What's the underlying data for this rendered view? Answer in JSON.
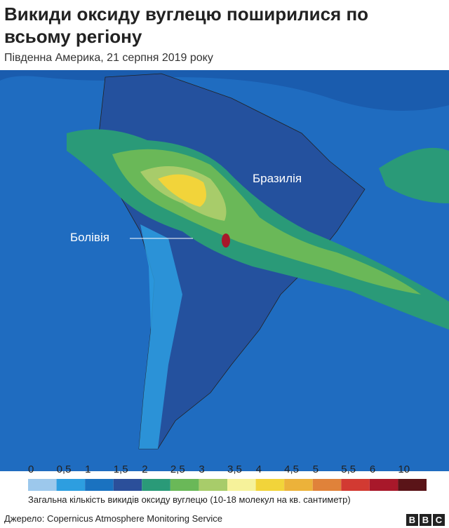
{
  "header": {
    "title": "Викиди оксиду вуглецю поширилися по всьому регіону",
    "subtitle": "Південна Америка, 21 серпня 2019 року"
  },
  "map": {
    "labels": {
      "brazil": "Бразилія",
      "bolivia": "Болівія"
    }
  },
  "legend": {
    "items": [
      {
        "label": "0",
        "color": "#9cc8ec"
      },
      {
        "label": "0,5",
        "color": "#2d9ee0"
      },
      {
        "label": "1",
        "color": "#1a72c0"
      },
      {
        "label": "1,5",
        "color": "#2b4f9a"
      },
      {
        "label": "2",
        "color": "#2a9a78"
      },
      {
        "label": "2,5",
        "color": "#6ab858"
      },
      {
        "label": "3",
        "color": "#a8cc6a"
      },
      {
        "label": "3,5",
        "color": "#f6f29a"
      },
      {
        "label": "4",
        "color": "#f2d43a"
      },
      {
        "label": "4,5",
        "color": "#ecb23a"
      },
      {
        "label": "5",
        "color": "#e0823a"
      },
      {
        "label": "5,5",
        "color": "#d23a32"
      },
      {
        "label": "6",
        "color": "#a8182a"
      },
      {
        "label": "10",
        "color": "#5a1418"
      }
    ],
    "caption": "Загальна кількість викидів оксиду вуглецю (10-18 молекул на кв. сантиметр)"
  },
  "footer": {
    "source": "Джерело: Copernicus Atmosphere Monitoring Service",
    "logo": [
      "B",
      "B",
      "C"
    ]
  }
}
